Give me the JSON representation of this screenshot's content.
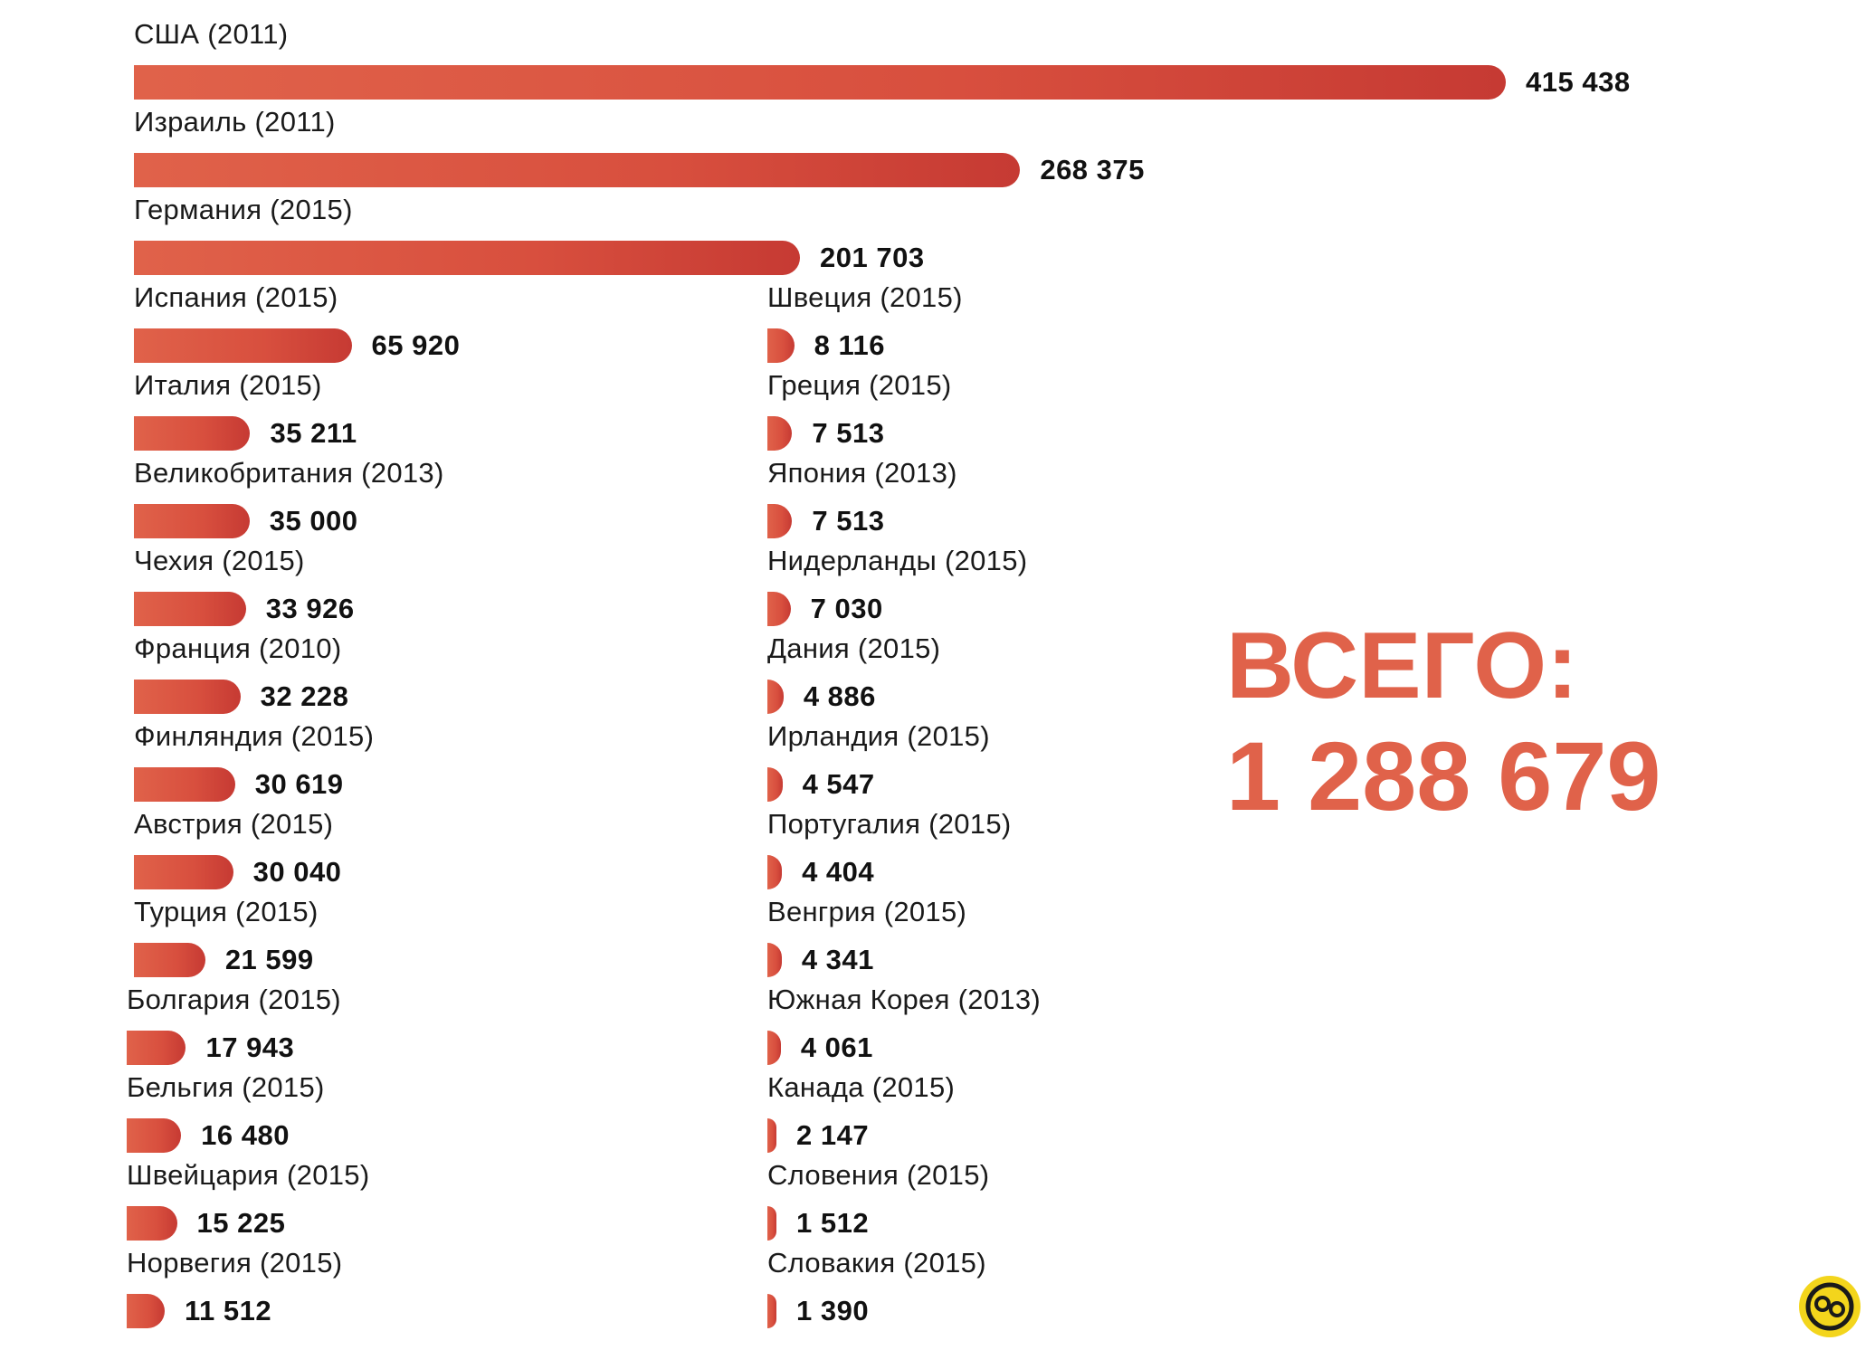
{
  "chart_data": {
    "type": "bar",
    "orientation": "horizontal",
    "categories": [
      "США (2011)",
      "Израиль (2011)",
      "Германия (2015)",
      "Испания (2015)",
      "Италия (2015)",
      "Великобритания (2013)",
      "Чехия (2015)",
      "Франция (2010)",
      "Финляндия (2015)",
      "Австрия (2015)",
      "Турция (2015)",
      "Болгария (2015)",
      "Бельгия (2015)",
      "Швейцария (2015)",
      "Норвегия (2015)",
      "Швеция (2015)",
      "Греция (2015)",
      "Япония (2013)",
      "Нидерланды (2015)",
      "Дания (2015)",
      "Ирландия (2015)",
      "Португалия (2015)",
      "Венгрия (2015)",
      "Южная Корея (2013)",
      "Канада (2015)",
      "Словения (2015)",
      "Словакия (2015)"
    ],
    "values": [
      415438,
      268375,
      201703,
      65920,
      35211,
      35000,
      33926,
      32228,
      30619,
      30040,
      21599,
      17943,
      16480,
      15225,
      11512,
      8116,
      7513,
      7513,
      7030,
      4886,
      4547,
      4404,
      4341,
      4061,
      2147,
      1512,
      1390
    ],
    "value_labels": [
      "415 438",
      "268 375",
      "201 703",
      "65 920",
      "35 211",
      "35 000",
      "33 926",
      "32 228",
      "30 619",
      "30 040",
      "21 599",
      "17 943",
      "16 480",
      "15 225",
      "11 512",
      "8 116",
      "7 513",
      "7 513",
      "7 030",
      "4 886",
      "4 547",
      "4 404",
      "4 341",
      "4 061",
      "2 147",
      "1 512",
      "1 390"
    ],
    "title": "",
    "xlabel": "",
    "ylabel": "",
    "grid": false,
    "legend": "none",
    "colors": {
      "bar_start": "#e0624a",
      "bar_end": "#c63a33",
      "total_text": "#e0624a",
      "value_text": "#111111",
      "label_text": "#1a1a1a"
    }
  },
  "summary": {
    "total_label": "ВСЕГО:",
    "total_value": "1 288 679"
  },
  "watermark": {
    "icon": "logo-badge-icon",
    "color": "#f3d51c"
  }
}
